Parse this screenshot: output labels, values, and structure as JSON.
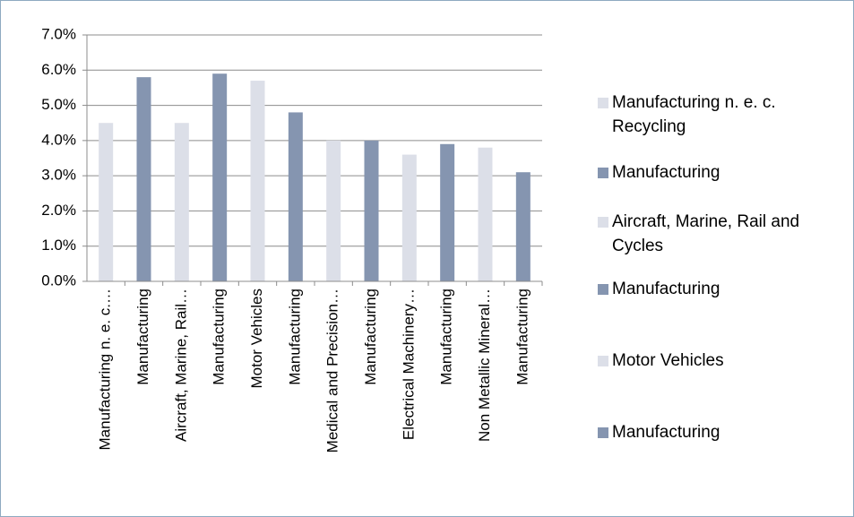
{
  "chart_data": {
    "type": "bar",
    "categories": [
      "Manufacturing n. e. c.…",
      "Manufacturing",
      "Aircraft, Marine, Rail…",
      "Manufacturing",
      "Motor Vehicles",
      "Manufacturing",
      "Medical and Precision…",
      "Manufacturing",
      "Electrical Machinery…",
      "Manufacturing",
      "Non Metallic Mineral…",
      "Manufacturing"
    ],
    "values": [
      4.5,
      5.8,
      4.5,
      5.9,
      5.7,
      4.8,
      4.0,
      4.0,
      3.6,
      3.9,
      3.8,
      3.1
    ],
    "colors": [
      "#dcdfe8",
      "#8595b0",
      "#dcdfe8",
      "#8595b0",
      "#dcdfe8",
      "#8595b0",
      "#dcdfe8",
      "#8595b0",
      "#dcdfe8",
      "#8595b0",
      "#dcdfe8",
      "#8595b0"
    ],
    "ylim": [
      0,
      7
    ],
    "yticks": [
      {
        "value": 0,
        "label": "0.0%"
      },
      {
        "value": 1,
        "label": "1.0%"
      },
      {
        "value": 2,
        "label": "2.0%"
      },
      {
        "value": 3,
        "label": "3.0%"
      },
      {
        "value": 4,
        "label": "4.0%"
      },
      {
        "value": 5,
        "label": "5.0%"
      },
      {
        "value": 6,
        "label": "6.0%"
      },
      {
        "value": 7,
        "label": "7.0%"
      }
    ],
    "grid": true,
    "legend_position": "right",
    "legend": [
      {
        "name": "Manufacturing n. e. c. Recycling",
        "color": "#dcdfe8"
      },
      {
        "name": "Manufacturing",
        "color": "#8595b0"
      },
      {
        "name": "Aircraft, Marine, Rail and Cycles",
        "color": "#dcdfe8"
      },
      {
        "name": "Manufacturing",
        "color": "#8595b0"
      },
      {
        "name": "Motor Vehicles",
        "color": "#dcdfe8"
      },
      {
        "name": "Manufacturing",
        "color": "#8595b0"
      }
    ]
  }
}
